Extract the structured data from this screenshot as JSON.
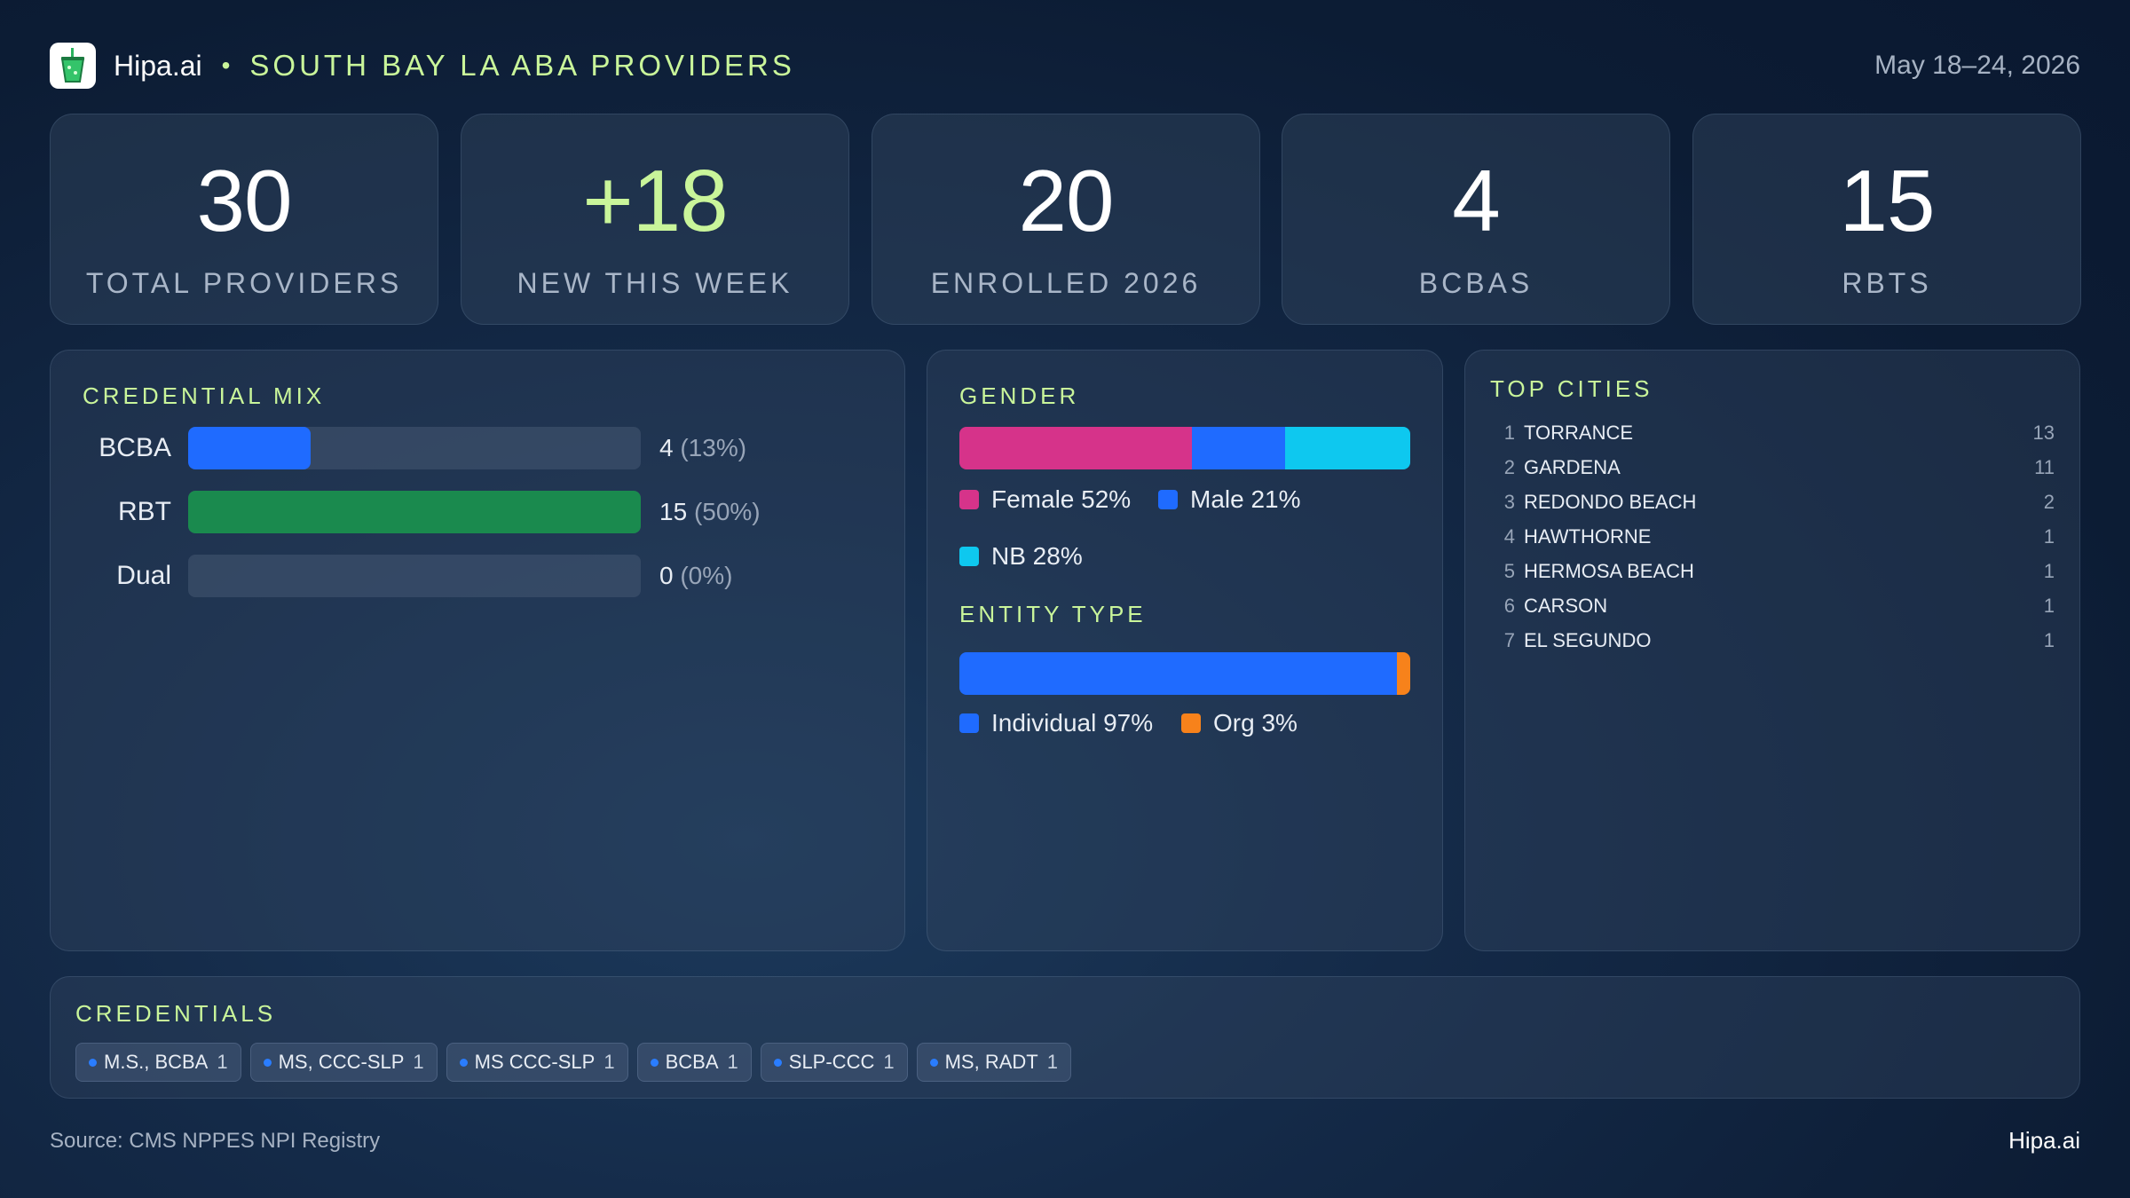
{
  "header": {
    "brand": "Hipa.ai",
    "separator": "•",
    "title": "SOUTH BAY LA ABA PROVIDERS",
    "date_range": "May 18–24, 2026"
  },
  "stats": [
    {
      "value": "30",
      "label": "TOTAL PROVIDERS"
    },
    {
      "value": "+18",
      "label": "NEW THIS WEEK"
    },
    {
      "value": "20",
      "label": "ENROLLED 2026"
    },
    {
      "value": "4",
      "label": "BCBAS"
    },
    {
      "value": "15",
      "label": "RBTS"
    }
  ],
  "credential_mix": {
    "title": "CREDENTIAL MIX",
    "rows": [
      {
        "label": "BCBA",
        "count": "4",
        "pct": "(13%)",
        "fraction": 0.27,
        "color": "#1f6bff"
      },
      {
        "label": "RBT",
        "count": "15",
        "pct": "(50%)",
        "fraction": 1.0,
        "color": "#1a8a4e"
      },
      {
        "label": "Dual",
        "count": "0",
        "pct": "(0%)",
        "fraction": 0.0,
        "color": "#1f6bff"
      }
    ]
  },
  "gender": {
    "title": "GENDER",
    "segments": [
      {
        "label": "Female 52%",
        "share": 52,
        "color": "#d6338a"
      },
      {
        "label": "Male 21%",
        "share": 21,
        "color": "#1f6bff"
      },
      {
        "label": "NB 28%",
        "share": 28,
        "color": "#0ec8ef"
      }
    ]
  },
  "entity_type": {
    "title": "ENTITY TYPE",
    "segments": [
      {
        "label": "Individual 97%",
        "share": 97,
        "color": "#1f6bff"
      },
      {
        "label": "Org 3%",
        "share": 3,
        "color": "#f7821b"
      }
    ]
  },
  "top_cities": {
    "title": "TOP CITIES",
    "items": [
      {
        "rank": "1",
        "name": "TORRANCE",
        "count": "13"
      },
      {
        "rank": "2",
        "name": "GARDENA",
        "count": "11"
      },
      {
        "rank": "3",
        "name": "REDONDO BEACH",
        "count": "2"
      },
      {
        "rank": "4",
        "name": "HAWTHORNE",
        "count": "1"
      },
      {
        "rank": "5",
        "name": "HERMOSA BEACH",
        "count": "1"
      },
      {
        "rank": "6",
        "name": "CARSON",
        "count": "1"
      },
      {
        "rank": "7",
        "name": "EL SEGUNDO",
        "count": "1"
      }
    ]
  },
  "credentials": {
    "title": "CREDENTIALS",
    "chips": [
      {
        "label": "M.S., BCBA",
        "count": "1"
      },
      {
        "label": "MS, CCC-SLP",
        "count": "1"
      },
      {
        "label": "MS CCC-SLP",
        "count": "1"
      },
      {
        "label": "BCBA",
        "count": "1"
      },
      {
        "label": "SLP-CCC",
        "count": "1"
      },
      {
        "label": "MS, RADT",
        "count": "1"
      }
    ]
  },
  "footer": {
    "source": "Source: CMS NPPES NPI Registry",
    "brand": "Hipa.ai"
  }
}
